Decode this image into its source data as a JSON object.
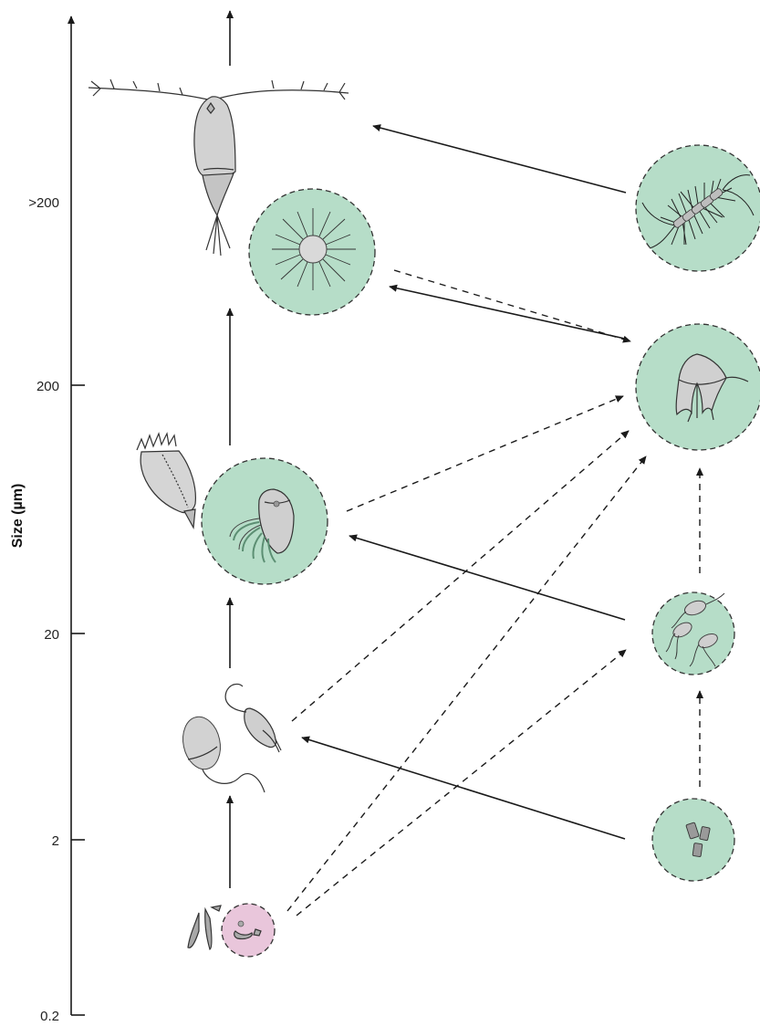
{
  "axis": {
    "title": "Size (µm)",
    "ticks": [
      ">200",
      "200",
      "20",
      "2",
      "0.2"
    ]
  },
  "colors": {
    "green_fill": "#b6ddc8",
    "pink_fill": "#e9c6db",
    "organism_grey": "#cfcfcf",
    "arrow": "#1a1a1a"
  },
  "organisms": [
    {
      "id": "copepod-icon",
      "highlight": "none"
    },
    {
      "id": "radiolarian-icon",
      "highlight": "green"
    },
    {
      "id": "tintinnid-icon",
      "highlight": "none"
    },
    {
      "id": "ciliate-icon",
      "highlight": "green"
    },
    {
      "id": "nanoflagellate-icon",
      "highlight": "none"
    },
    {
      "id": "bacteria-icon",
      "highlight": "pink"
    },
    {
      "id": "diatom-chain-icon",
      "highlight": "green"
    },
    {
      "id": "dinoflagellate-icon",
      "highlight": "green"
    },
    {
      "id": "flagellate-cells-icon",
      "highlight": "green"
    },
    {
      "id": "picophytoplankton-icon",
      "highlight": "green"
    }
  ]
}
